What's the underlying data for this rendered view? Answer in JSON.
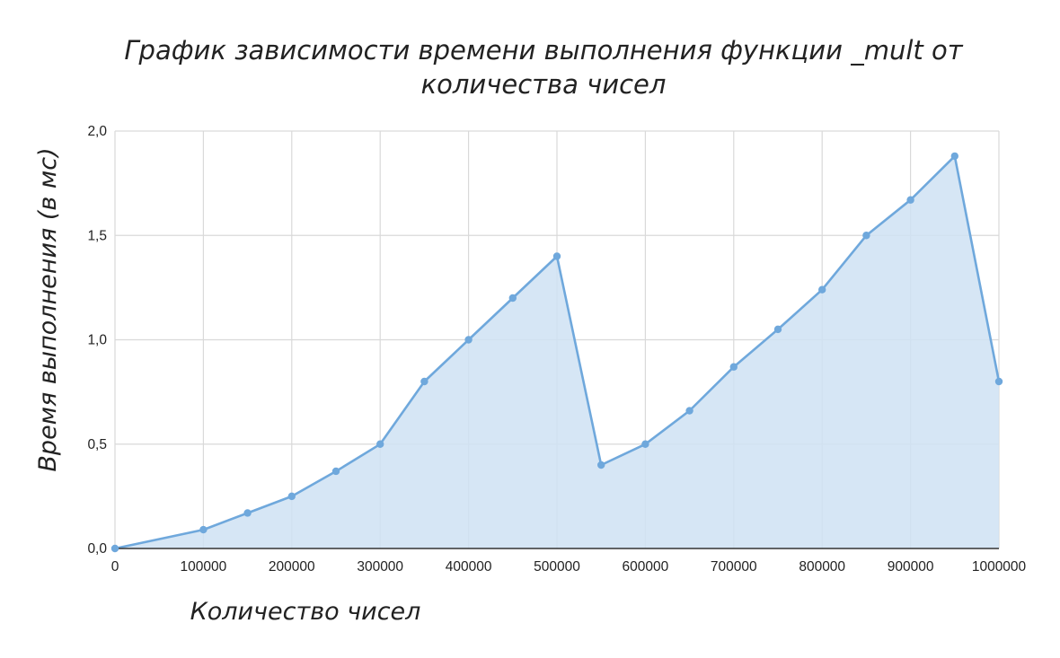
{
  "chart_data": {
    "type": "area",
    "title_lines": [
      "График зависимости времени выполнения функции _mult от",
      "количества чисел"
    ],
    "xlabel": "Количество чисел",
    "ylabel": "Время выполнения (в мс)",
    "xlim": [
      0,
      1000000
    ],
    "ylim": [
      0,
      2.0
    ],
    "x_ticks": [
      "0",
      "100000",
      "200000",
      "300000",
      "400000",
      "500000",
      "600000",
      "700000",
      "800000",
      "900000",
      "1000000"
    ],
    "y_ticks": [
      "0,0",
      "0,5",
      "1,0",
      "1,5",
      "2,0"
    ],
    "x": [
      0,
      100000,
      150000,
      200000,
      250000,
      300000,
      350000,
      400000,
      450000,
      500000,
      550000,
      600000,
      650000,
      700000,
      750000,
      800000,
      850000,
      900000,
      950000,
      1000000
    ],
    "values": [
      0.0,
      0.09,
      0.17,
      0.25,
      0.37,
      0.5,
      0.8,
      1.0,
      1.2,
      1.4,
      0.4,
      0.5,
      0.66,
      0.87,
      1.05,
      1.24,
      1.5,
      1.67,
      1.88,
      0.8
    ],
    "grid": true,
    "legend": "none",
    "colors": {
      "line": "#6fa8dc",
      "fill": "#cfe2f3",
      "grid": "#d9d9d9"
    }
  }
}
